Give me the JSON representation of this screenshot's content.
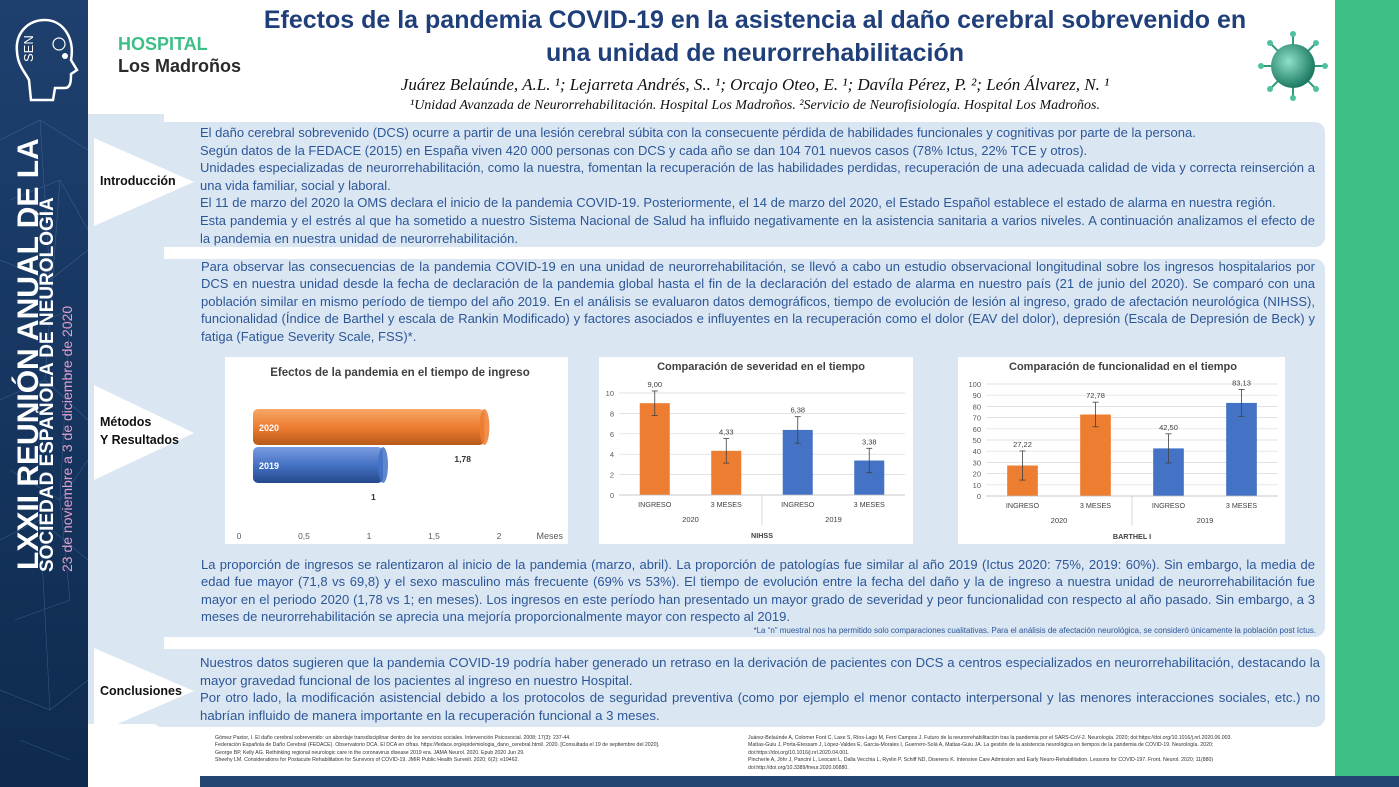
{
  "conference": {
    "line1": "LXXII REUNIÓN ANUAL DE LA",
    "line2": "SOCIEDAD ESPAÑOLA DE NEUROLOGÍA",
    "dates": "23 de noviembre a 3 de diciembre de 2020",
    "logo_text": "SEN"
  },
  "hospital": {
    "line1": "HOSPITAL",
    "line2": "Los Madroños"
  },
  "title": "Efectos de la pandemia COVID-19 en la asistencia al daño cerebral sobrevenido en una unidad de neurorrehabilitación",
  "authors": "Juárez Belaúnde, A.L. ¹; Lejarreta Andrés, S.. ¹; Orcajo Oteo, E. ¹; Davíla Pérez, P. ²; León Álvarez, N. ¹",
  "affiliations": "¹Unidad Avanzada de Neurorrehabilitación. Hospital Los Madroños. ²Servicio de Neurofisiología. Hospital Los Madroños.",
  "sections": {
    "intro_label": "Introducción",
    "methods_label_1": "Métodos",
    "methods_label_2": "Y Resultados",
    "conclusions_label": "Conclusiones"
  },
  "intro": [
    "El daño cerebral sobrevenido (DCS) ocurre a partir de una lesión cerebral súbita con la consecuente pérdida de habilidades funcionales y cognitivas por parte de la persona.",
    "Según datos de la FEDACE (2015) en España viven 420 000 personas con DCS y cada año se dan 104 701 nuevos casos (78% Ictus, 22% TCE y otros).",
    "Unidades especializadas de neurorrehabilitación, como la nuestra, fomentan la recuperación de las habilidades perdidas, recuperación de una adecuada calidad de vida y correcta reinserción a una vida familiar, social y laboral.",
    "El 11 de marzo del 2020 la OMS declara el inicio de la pandemia COVID-19. Posteriormente, el 14 de marzo del 2020, el Estado Español establece el estado de alarma en nuestra región.",
    "Esta pandemia y el estrés al que ha sometido a nuestro Sistema Nacional de Salud ha influido negativamente en la asistencia sanitaria a varios niveles. A continuación analizamos el efecto de la pandemia en nuestra unidad de neurorrehabilitación."
  ],
  "methods": "Para observar las consecuencias de la pandemia COVID-19 en una unidad de neurorrehabilitación, se llevó a cabo un estudio observacional longitudinal sobre los ingresos hospitalarios por DCS en nuestra unidad desde la fecha de declaración de la pandemia global hasta el fin de la declaración del estado de alarma en nuestro país (21 de junio del 2020). Se comparó con una población similar en mismo período de tiempo del año 2019. En el análisis se evaluaron datos demográficos, tiempo de evolución de lesión al ingreso, grado de afectación neurológica (NIHSS), funcionalidad (Índice de Barthel y escala de Rankin Modificado) y factores asociados e influyentes en la recuperación como el dolor (EAV del dolor), depresión (Escala de Depresión de Beck) y fatiga (Fatigue Severity Scale, FSS)*.",
  "results": "La proporción de ingresos se ralentizaron al inicio de la pandemia (marzo, abril). La proporción de patologías fue similar al año 2019 (Ictus 2020: 75%, 2019: 60%). Sin embargo, la media de edad fue mayor (71,8 vs 69,8) y el sexo masculino más frecuente (69% vs 53%). El tiempo de evolución entre la fecha del daño y la de ingreso a nuestra unidad de neurorrehabilitación fue mayor en el periodo 2020 (1,78 vs 1; en meses).    Los ingresos en este período han presentado un mayor grado de severidad y peor funcionalidad con respecto al año pasado. Sin embargo, a 3 meses de neurorrehabilitación se aprecia una mejoría proporcionalmente mayor con respecto al 2019.",
  "note": "*La “n” muestral nos ha permitido solo comparaciones cualitativas. Para el análisis de afectación neurológica, se consideró únicamente la población post Ictus.",
  "conclusions": [
    "Nuestros datos sugieren que la pandemia COVID-19 podría haber generado un retraso en la derivación de pacientes con DCS a centros especializados en neurorrehabilitación, destacando la mayor gravedad funcional de los pacientes al ingreso en nuestro Hospital.",
    "Por otro lado, la modificación asistencial debido a los protocolos de seguridad preventiva (como por ejemplo el menor contacto interpersonal y las menores interacciones sociales, etc.)  no habrían influido de manera importante en la recuperación funcional a 3 meses."
  ],
  "references_left": [
    "Gómez Pastor, I. El daño cerebral sobrevenido: un abordaje transdisciplinar dentro de los servicios sociales. Intervención Psicosocial. 2008; 17(3): 237-44.",
    "Federación Española de Daño Cerebral (FEDACE). Observatorio DCA. El DCA en cifras. https://fedace.org/epidemiologia_dano_cerebral.html/. 2020. [Consultada el 19 de septiembre del 2020].",
    "George BP, Kelly AG. Rethinking regional neurologic care in the coronavirus disease 2019 era. JAMA Neurol. 2020. Epub 2020 Jun 29.",
    "Sheehy LM. Considerations for Postacute Rehabilitation for Survivors of COVID-19. JMIR Public Health Surveill. 2020; 6(2): e19462."
  ],
  "references_right": [
    "Juárez-Belaúnde A, Colomer Font C, Laxe S, Ríos-Lago M, Ferri Campos J. Futuro de la neurorrehabilitación tras la pandemia por el SARS-CoV-2. Neurología. 2020; doi:https://doi.org/10.1016/j.nrl.2020.06.003.",
    "Matías-Guiu J, Porta-Etessam J, López-Valdes E, Garcia-Morales I, Guerrero-Solá A, Matias-Guiu JA. La gestión de la asistencia neurológica en tiempos de la pandemia de COVID-19. Neurología. 2020; doi:https://doi.org/10.1016/j.nrl.2020.04.001.",
    "Pincherle A, Jöhr J, Pancini L, Leocani L, Dalla Vecchia L, Ryvlin P, Schiff ND, Diserens K. Intensive Care Admission and Early Neuro-Rehabilitation. Lessons for COVID-197. Front. Neurol. 2020; 11(880) doi:http://doi.org/10.3389/fneur.2020.00880."
  ],
  "chart_data": [
    {
      "type": "bar",
      "orientation": "horizontal",
      "title": "Efectos de la pandemia en el tiempo de ingreso",
      "categories": [
        "2020",
        "2019"
      ],
      "values": [
        1.78,
        1
      ],
      "value_labels": [
        "1,78",
        "1"
      ],
      "colors": [
        "#ed7d31",
        "#4472c4"
      ],
      "xlabel": "Meses",
      "xticks": [
        "0",
        "0,5",
        "1",
        "1,5",
        "2"
      ],
      "xlim": [
        0,
        2
      ]
    },
    {
      "type": "bar",
      "title": "Comparación de severidad en el tiempo",
      "categories": [
        "INGRESO",
        "3 MESES",
        "INGRESO",
        "3 MESES"
      ],
      "groups": [
        "2020",
        "2019"
      ],
      "values": [
        9.0,
        4.33,
        6.38,
        3.38
      ],
      "value_labels": [
        "9,00",
        "4,33",
        "6,38",
        "3,38"
      ],
      "errors": [
        1.2,
        1.2,
        1.3,
        1.2
      ],
      "colors": [
        "#ed7d31",
        "#ed7d31",
        "#4472c4",
        "#4472c4"
      ],
      "xlabel": "NIHSS",
      "yticks": [
        "0",
        "2",
        "4",
        "6",
        "8",
        "10"
      ],
      "ylim": [
        0,
        10
      ]
    },
    {
      "type": "bar",
      "title": "Comparación de funcionalidad en el tiempo",
      "categories": [
        "INGRESO",
        "3 MESES",
        "INGRESO",
        "3 MESES"
      ],
      "groups": [
        "2020",
        "2019"
      ],
      "values": [
        27.22,
        72.78,
        42.5,
        83.13
      ],
      "value_labels": [
        "27,22",
        "72,78",
        "42,50",
        "83,13"
      ],
      "errors": [
        13,
        11,
        13,
        12
      ],
      "colors": [
        "#ed7d31",
        "#ed7d31",
        "#4472c4",
        "#4472c4"
      ],
      "xlabel": "BARTHEL I",
      "yticks": [
        "0",
        "10",
        "20",
        "30",
        "40",
        "50",
        "60",
        "70",
        "80",
        "90",
        "100"
      ],
      "ylim": [
        0,
        100
      ]
    }
  ]
}
